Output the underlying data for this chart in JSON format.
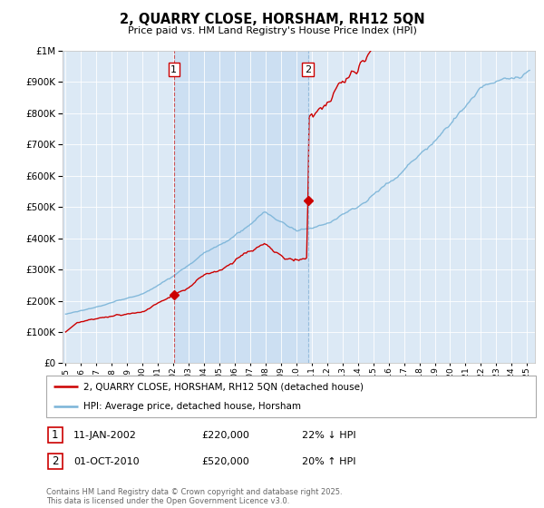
{
  "title": "2, QUARRY CLOSE, HORSHAM, RH12 5QN",
  "subtitle": "Price paid vs. HM Land Registry's House Price Index (HPI)",
  "ytick_values": [
    0,
    100000,
    200000,
    300000,
    400000,
    500000,
    600000,
    700000,
    800000,
    900000,
    1000000
  ],
  "ylim": [
    0,
    1000000
  ],
  "xlim_start": 1994.8,
  "xlim_end": 2025.5,
  "background_color": "#dce9f5",
  "line1_color": "#cc0000",
  "line2_color": "#7ab4d8",
  "vline1_x": 2002.04,
  "vline2_x": 2010.75,
  "vline1_color": "#cc3333",
  "vline2_color": "#8ab4d8",
  "shade_alpha": 0.25,
  "marker1_x": 2002.04,
  "marker1_y": 220000,
  "marker2_x": 2010.75,
  "marker2_y": 520000,
  "label1_text": "1",
  "label2_text": "2",
  "legend_line1": "2, QUARRY CLOSE, HORSHAM, RH12 5QN (detached house)",
  "legend_line2": "HPI: Average price, detached house, Horsham",
  "table_row1": [
    "1",
    "11-JAN-2002",
    "£220,000",
    "22% ↓ HPI"
  ],
  "table_row2": [
    "2",
    "01-OCT-2010",
    "£520,000",
    "20% ↑ HPI"
  ],
  "footer": "Contains HM Land Registry data © Crown copyright and database right 2025.\nThis data is licensed under the Open Government Licence v3.0.",
  "xtick_years": [
    1995,
    1996,
    1997,
    1998,
    1999,
    2000,
    2001,
    2002,
    2003,
    2004,
    2005,
    2006,
    2007,
    2008,
    2009,
    2010,
    2011,
    2012,
    2013,
    2014,
    2015,
    2016,
    2017,
    2018,
    2019,
    2020,
    2021,
    2022,
    2023,
    2024,
    2025
  ],
  "hpi_seed": 1234,
  "prop_seed": 5678
}
